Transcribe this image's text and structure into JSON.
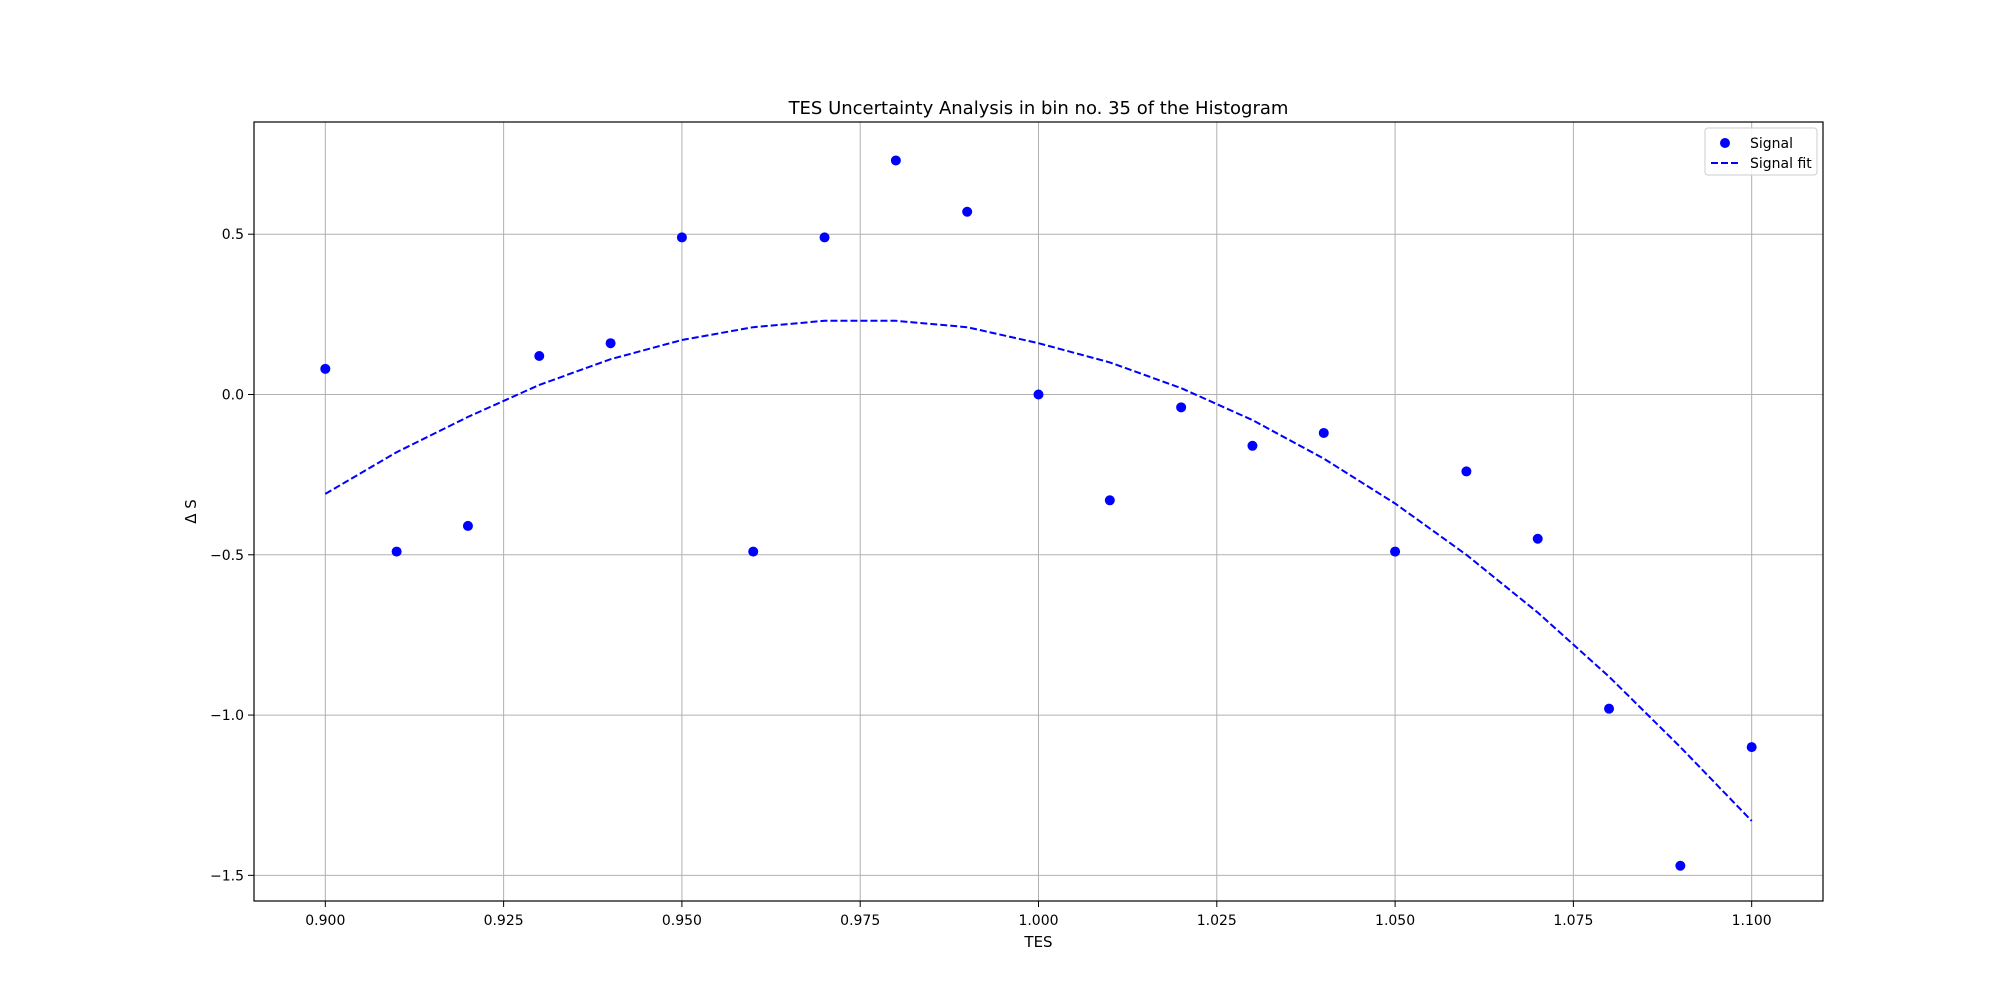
{
  "chart_data": {
    "type": "scatter",
    "title": "TES Uncertainty Analysis in bin no. 35 of the Histogram",
    "xlabel": "TES",
    "ylabel": "Δ S",
    "xlim": [
      0.89,
      1.11
    ],
    "ylim": [
      -1.58,
      0.85
    ],
    "xticks": [
      0.9,
      0.925,
      0.95,
      0.975,
      1.0,
      1.025,
      1.05,
      1.075,
      1.1
    ],
    "xtick_labels": [
      "0.900",
      "0.925",
      "0.950",
      "0.975",
      "1.000",
      "1.025",
      "1.050",
      "1.075",
      "1.100"
    ],
    "yticks": [
      0.5,
      0.0,
      -0.5,
      -1.0,
      -1.5
    ],
    "ytick_labels": [
      "0.5",
      "0.0",
      "−0.5",
      "−1.0",
      "−1.5"
    ],
    "grid": true,
    "legend_position": "top-right",
    "series": [
      {
        "name": "Signal",
        "kind": "scatter",
        "color": "#0000ff",
        "x": [
          0.9,
          0.91,
          0.92,
          0.93,
          0.94,
          0.95,
          0.96,
          0.97,
          0.98,
          0.99,
          1.0,
          1.01,
          1.02,
          1.03,
          1.04,
          1.05,
          1.06,
          1.07,
          1.08,
          1.09,
          1.1
        ],
        "y": [
          0.08,
          -0.49,
          -0.41,
          0.12,
          0.16,
          0.49,
          -0.49,
          0.49,
          0.73,
          0.57,
          0.0,
          -0.33,
          -0.04,
          -0.16,
          -0.12,
          -0.49,
          -0.24,
          -0.45,
          -0.98,
          -1.47,
          -1.1
        ]
      },
      {
        "name": "Signal fit",
        "kind": "line",
        "style": "dashed",
        "color": "#0000ff",
        "x": [
          0.9,
          0.91,
          0.92,
          0.93,
          0.94,
          0.95,
          0.96,
          0.97,
          0.975,
          0.98,
          0.99,
          1.0,
          1.01,
          1.02,
          1.03,
          1.04,
          1.05,
          1.06,
          1.07,
          1.08,
          1.09,
          1.1
        ],
        "y": [
          -0.31,
          -0.18,
          -0.07,
          0.03,
          0.11,
          0.17,
          0.21,
          0.23,
          0.23,
          0.23,
          0.21,
          0.16,
          0.1,
          0.02,
          -0.08,
          -0.2,
          -0.34,
          -0.5,
          -0.68,
          -0.88,
          -1.1,
          -1.33
        ]
      }
    ]
  }
}
